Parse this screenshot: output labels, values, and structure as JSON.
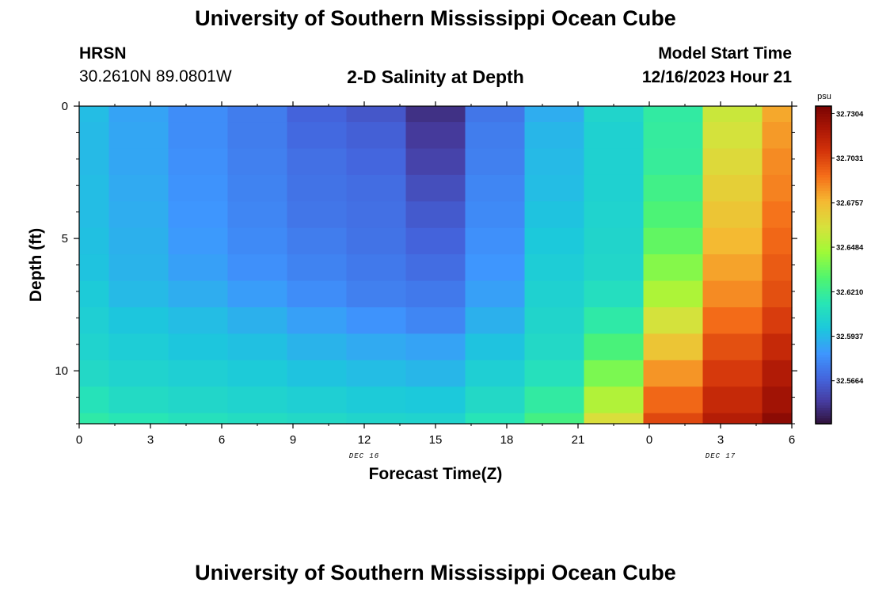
{
  "header": {
    "title": "University of Southern Mississippi Ocean Cube",
    "station": "HRSN",
    "coords": "30.2610N  89.0801W",
    "subtitle": "2-D Salinity at Depth",
    "model_start_label": "Model Start Time",
    "model_start_value": "12/16/2023 Hour 21"
  },
  "footer": {
    "title": "University of Southern Mississippi Ocean Cube"
  },
  "chart_data": {
    "type": "heatmap",
    "title": "2-D Salinity at Depth",
    "xlabel": "Forecast Time(Z)",
    "ylabel": "Depth (ft)",
    "x_range_hours": [
      0,
      30
    ],
    "x_ticks": [
      {
        "hour": 0,
        "label": "0"
      },
      {
        "hour": 3,
        "label": "3"
      },
      {
        "hour": 6,
        "label": "6"
      },
      {
        "hour": 9,
        "label": "9"
      },
      {
        "hour": 12,
        "label": "12"
      },
      {
        "hour": 15,
        "label": "15"
      },
      {
        "hour": 18,
        "label": "18"
      },
      {
        "hour": 21,
        "label": "21"
      },
      {
        "hour": 24,
        "label": "0"
      },
      {
        "hour": 27,
        "label": "3"
      },
      {
        "hour": 30,
        "label": "6"
      }
    ],
    "date_labels": [
      {
        "hour": 12,
        "label": "DEC 16"
      },
      {
        "hour": 27,
        "label": "DEC 17"
      }
    ],
    "y_range_ft": [
      0,
      12
    ],
    "y_ticks": [
      {
        "depth": 0,
        "label": "0"
      },
      {
        "depth": 5,
        "label": "5"
      },
      {
        "depth": 10,
        "label": "10"
      }
    ],
    "column_edges_hours": [
      0,
      1.25,
      3.75,
      6.25,
      8.75,
      11.25,
      13.75,
      16.25,
      18.75,
      21.25,
      23.75,
      26.25,
      28.75,
      30
    ],
    "row_edges_ft": [
      0,
      0.6,
      1.6,
      2.6,
      3.6,
      4.6,
      5.6,
      6.6,
      7.6,
      8.6,
      9.6,
      10.6,
      11.6,
      12
    ],
    "values": [
      [
        32.595,
        32.587,
        32.58,
        32.575,
        32.567,
        32.563,
        32.55,
        32.573,
        32.59,
        32.605,
        32.618,
        32.657,
        32.68
      ],
      [
        32.594,
        32.588,
        32.58,
        32.575,
        32.569,
        32.566,
        32.553,
        32.575,
        32.593,
        32.603,
        32.619,
        32.66,
        32.683
      ],
      [
        32.594,
        32.588,
        32.581,
        32.576,
        32.571,
        32.568,
        32.556,
        32.576,
        32.594,
        32.603,
        32.62,
        32.664,
        32.686
      ],
      [
        32.595,
        32.589,
        32.582,
        32.577,
        32.572,
        32.57,
        32.56,
        32.578,
        32.595,
        32.603,
        32.624,
        32.668,
        32.688
      ],
      [
        32.595,
        32.59,
        32.583,
        32.578,
        32.573,
        32.571,
        32.564,
        32.579,
        32.597,
        32.604,
        32.628,
        32.672,
        32.691
      ],
      [
        32.596,
        32.591,
        32.584,
        32.579,
        32.575,
        32.572,
        32.567,
        32.581,
        32.599,
        32.605,
        32.633,
        32.676,
        32.694
      ],
      [
        32.597,
        32.592,
        32.586,
        32.581,
        32.577,
        32.574,
        32.57,
        32.583,
        32.601,
        32.606,
        32.64,
        32.681,
        32.697
      ],
      [
        32.6,
        32.594,
        32.59,
        32.585,
        32.58,
        32.576,
        32.574,
        32.586,
        32.603,
        32.61,
        32.649,
        32.686,
        32.7
      ],
      [
        32.602,
        32.598,
        32.595,
        32.591,
        32.586,
        32.582,
        32.578,
        32.591,
        32.605,
        32.617,
        32.66,
        32.693,
        32.705
      ],
      [
        32.604,
        32.601,
        32.598,
        32.596,
        32.592,
        32.589,
        32.587,
        32.597,
        32.607,
        32.627,
        32.672,
        32.7,
        32.712
      ],
      [
        32.607,
        32.604,
        32.602,
        32.6,
        32.597,
        32.595,
        32.593,
        32.602,
        32.611,
        32.638,
        32.684,
        32.706,
        32.719
      ],
      [
        32.612,
        32.608,
        32.606,
        32.604,
        32.602,
        32.6,
        32.599,
        32.607,
        32.618,
        32.65,
        32.694,
        32.712,
        32.724
      ],
      [
        32.617,
        32.614,
        32.611,
        32.609,
        32.607,
        32.605,
        32.604,
        32.613,
        32.625,
        32.662,
        32.702,
        32.718,
        32.73
      ]
    ],
    "colorbar": {
      "unit": "psu",
      "min": 32.54,
      "max": 32.735,
      "ticks": [
        {
          "value": 32.7304,
          "label": "32.7304"
        },
        {
          "value": 32.7031,
          "label": "32.7031"
        },
        {
          "value": 32.6757,
          "label": "32.6757"
        },
        {
          "value": 32.6484,
          "label": "32.6484"
        },
        {
          "value": 32.621,
          "label": "32.6210"
        },
        {
          "value": 32.5937,
          "label": "32.5937"
        },
        {
          "value": 32.5664,
          "label": "32.5664"
        }
      ]
    }
  }
}
